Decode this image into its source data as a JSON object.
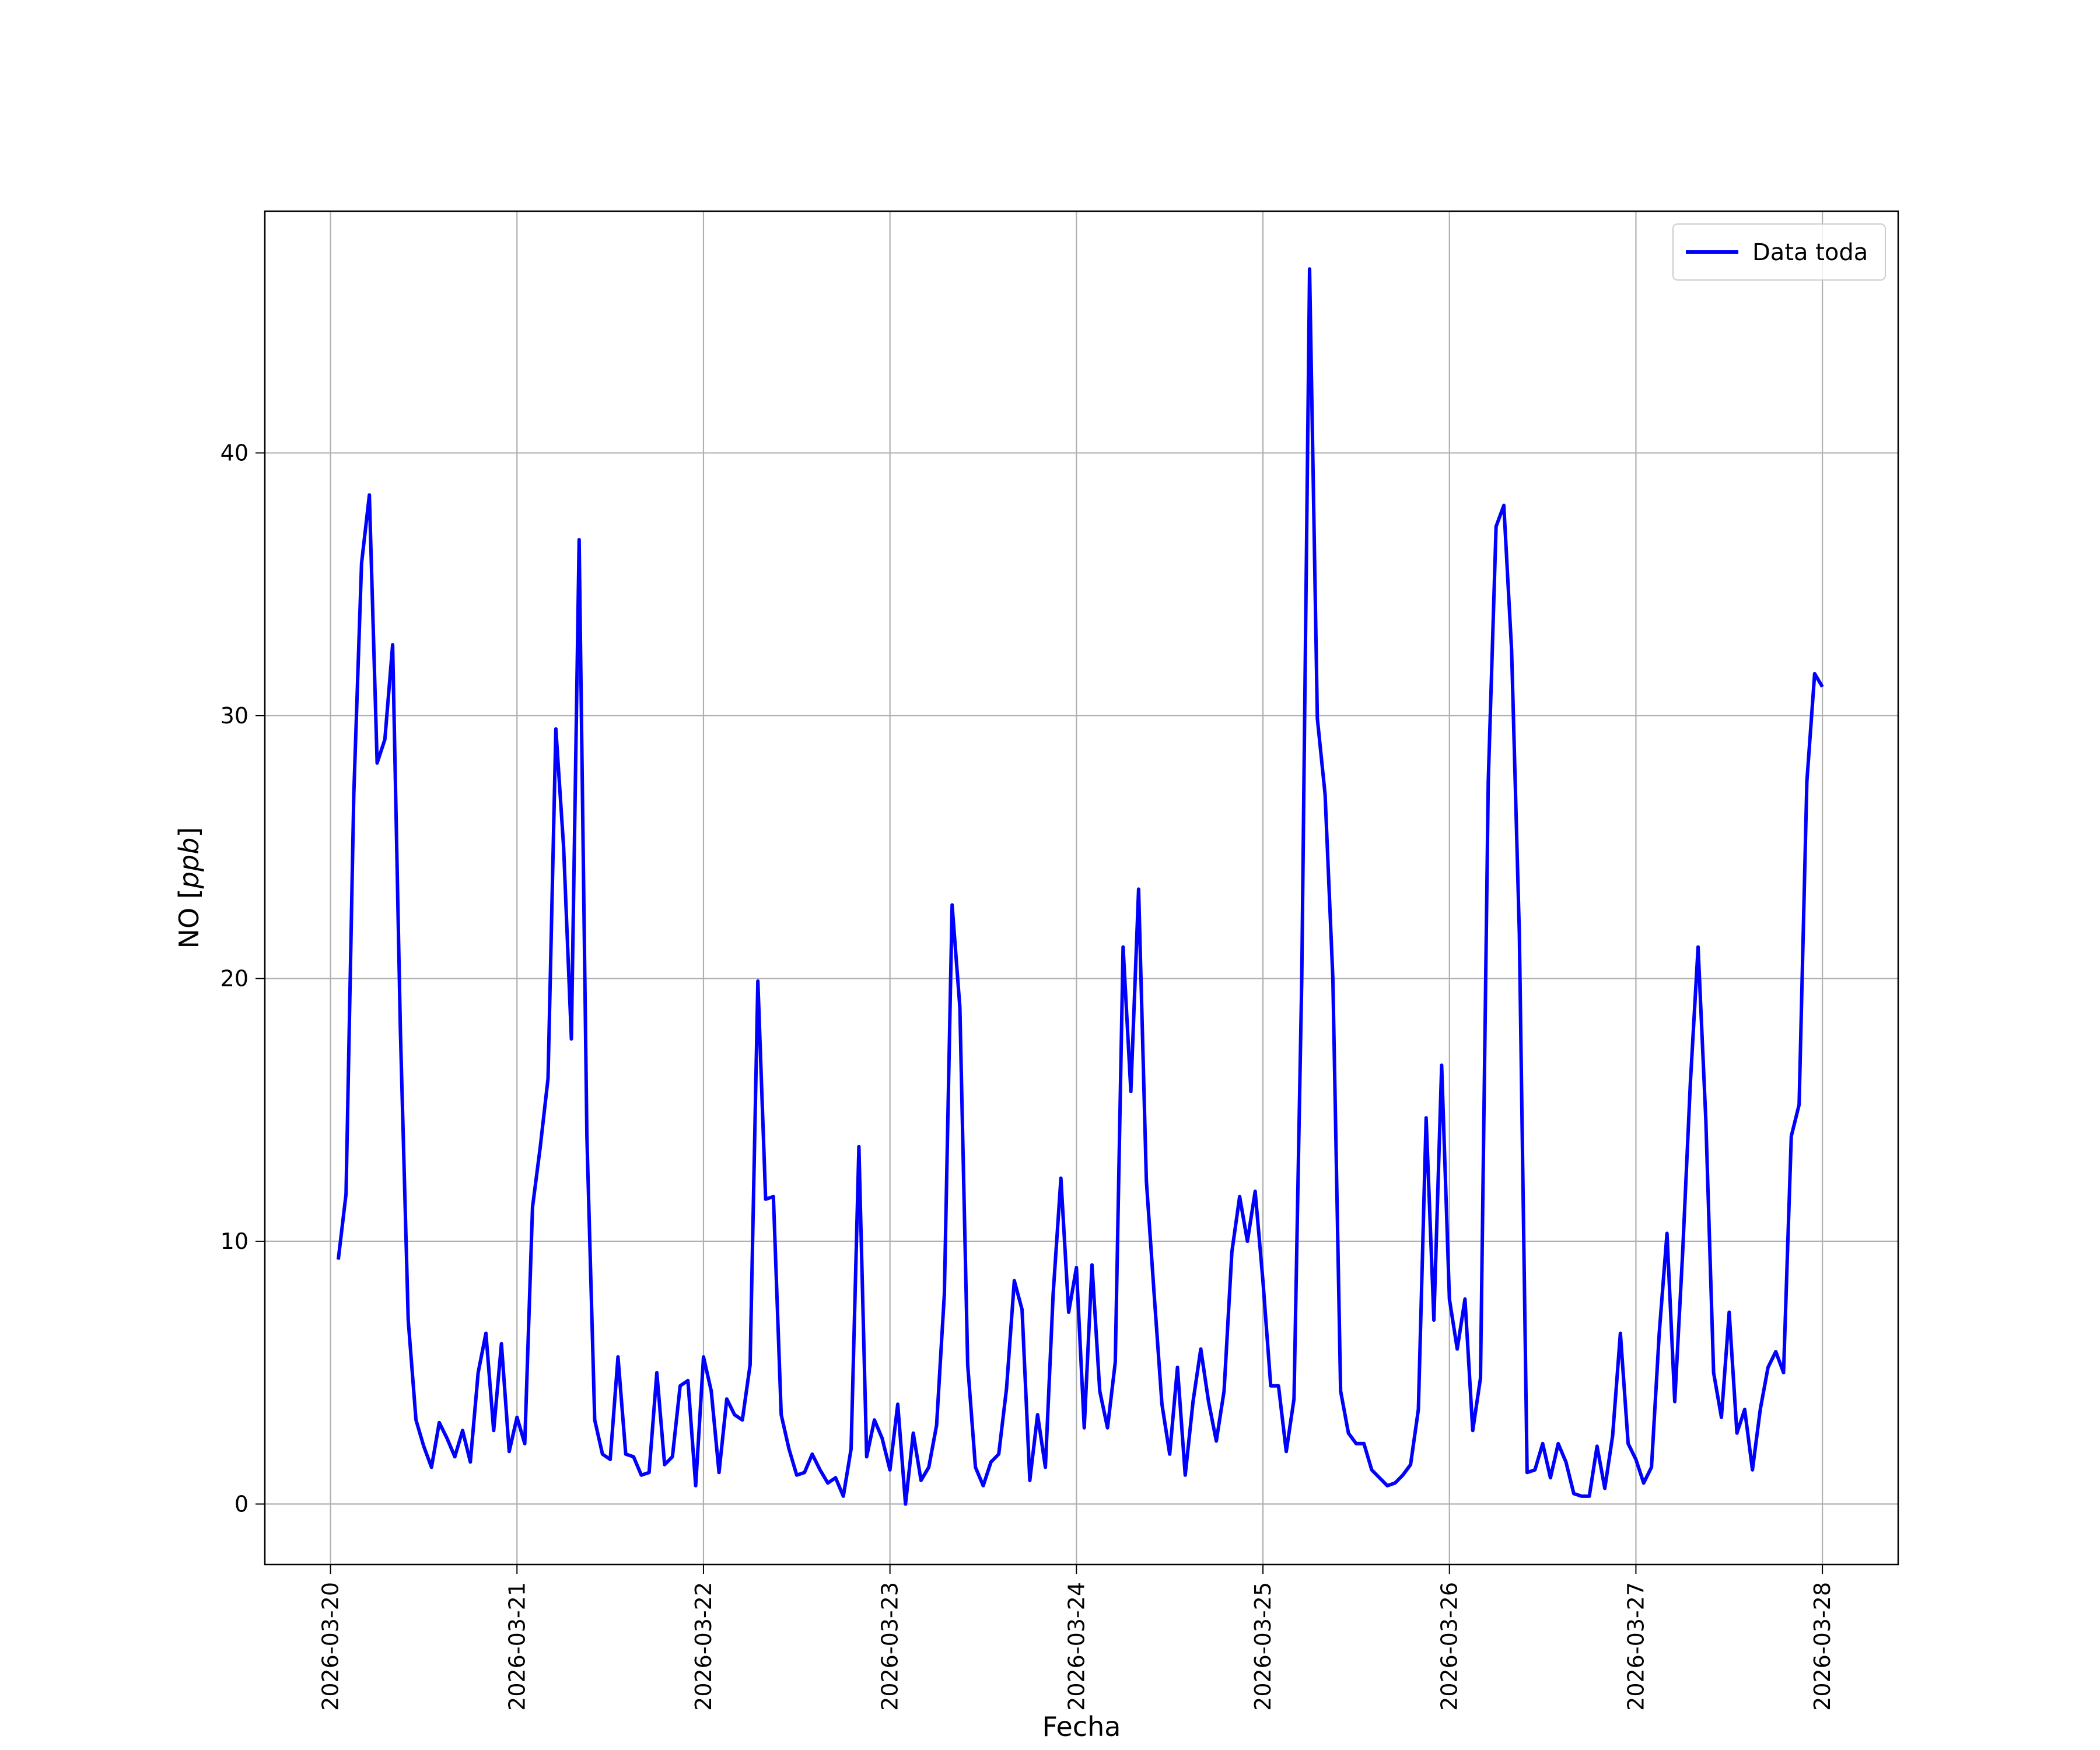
{
  "chart_data": {
    "type": "line",
    "title": "",
    "xlabel": "Fecha",
    "ylabel_prefix": "NO [",
    "ylabel_unit": "ppb",
    "ylabel_suffix": "]",
    "x_ticks": [
      "2026-03-20",
      "2026-03-21",
      "2026-03-22",
      "2026-03-23",
      "2026-03-24",
      "2026-03-25",
      "2026-03-26",
      "2026-03-27",
      "2026-03-28"
    ],
    "y_ticks": [
      0,
      10,
      20,
      30,
      40
    ],
    "xlim": [
      "2026-03-19T15:33",
      "2026-03-28T09:45"
    ],
    "ylim": [
      -2.3,
      49.2
    ],
    "grid": true,
    "legend": {
      "position": "top-right"
    },
    "series": [
      {
        "name": "Data toda",
        "color": "#0000ff",
        "x": [
          "2026-03-20T01:00",
          "2026-03-20T02:00",
          "2026-03-20T03:00",
          "2026-03-20T04:00",
          "2026-03-20T05:00",
          "2026-03-20T06:00",
          "2026-03-20T07:00",
          "2026-03-20T08:00",
          "2026-03-20T09:00",
          "2026-03-20T10:00",
          "2026-03-20T11:00",
          "2026-03-20T12:00",
          "2026-03-20T13:00",
          "2026-03-20T14:00",
          "2026-03-20T15:00",
          "2026-03-20T16:00",
          "2026-03-20T17:00",
          "2026-03-20T18:00",
          "2026-03-20T19:00",
          "2026-03-20T20:00",
          "2026-03-20T21:00",
          "2026-03-20T22:00",
          "2026-03-20T23:00",
          "2026-03-21T00:00",
          "2026-03-21T01:00",
          "2026-03-21T02:00",
          "2026-03-21T03:00",
          "2026-03-21T04:00",
          "2026-03-21T05:00",
          "2026-03-21T06:00",
          "2026-03-21T07:00",
          "2026-03-21T08:00",
          "2026-03-21T09:00",
          "2026-03-21T10:00",
          "2026-03-21T11:00",
          "2026-03-21T12:00",
          "2026-03-21T13:00",
          "2026-03-21T14:00",
          "2026-03-21T15:00",
          "2026-03-21T16:00",
          "2026-03-21T17:00",
          "2026-03-21T18:00",
          "2026-03-21T19:00",
          "2026-03-21T20:00",
          "2026-03-21T21:00",
          "2026-03-21T22:00",
          "2026-03-21T23:00",
          "2026-03-22T00:00",
          "2026-03-22T01:00",
          "2026-03-22T02:00",
          "2026-03-22T03:00",
          "2026-03-22T04:00",
          "2026-03-22T05:00",
          "2026-03-22T06:00",
          "2026-03-22T07:00",
          "2026-03-22T08:00",
          "2026-03-22T09:00",
          "2026-03-22T10:00",
          "2026-03-22T11:00",
          "2026-03-22T12:00",
          "2026-03-22T13:00",
          "2026-03-22T14:00",
          "2026-03-22T15:00",
          "2026-03-22T16:00",
          "2026-03-22T17:00",
          "2026-03-22T18:00",
          "2026-03-22T19:00",
          "2026-03-22T20:00",
          "2026-03-22T21:00",
          "2026-03-22T22:00",
          "2026-03-22T23:00",
          "2026-03-23T00:00",
          "2026-03-23T01:00",
          "2026-03-23T02:00",
          "2026-03-23T03:00",
          "2026-03-23T04:00",
          "2026-03-23T05:00",
          "2026-03-23T06:00",
          "2026-03-23T07:00",
          "2026-03-23T08:00",
          "2026-03-23T09:00",
          "2026-03-23T10:00",
          "2026-03-23T11:00",
          "2026-03-23T12:00",
          "2026-03-23T13:00",
          "2026-03-23T14:00",
          "2026-03-23T15:00",
          "2026-03-23T16:00",
          "2026-03-23T17:00",
          "2026-03-23T18:00",
          "2026-03-23T19:00",
          "2026-03-23T20:00",
          "2026-03-23T21:00",
          "2026-03-23T22:00",
          "2026-03-23T23:00",
          "2026-03-24T00:00",
          "2026-03-24T01:00",
          "2026-03-24T02:00",
          "2026-03-24T03:00",
          "2026-03-24T04:00",
          "2026-03-24T05:00",
          "2026-03-24T06:00",
          "2026-03-24T07:00",
          "2026-03-24T08:00",
          "2026-03-24T09:00",
          "2026-03-24T10:00",
          "2026-03-24T11:00",
          "2026-03-24T12:00",
          "2026-03-24T13:00",
          "2026-03-24T14:00",
          "2026-03-24T15:00",
          "2026-03-24T16:00",
          "2026-03-24T17:00",
          "2026-03-24T18:00",
          "2026-03-24T19:00",
          "2026-03-24T20:00",
          "2026-03-24T21:00",
          "2026-03-24T22:00",
          "2026-03-24T23:00",
          "2026-03-25T00:00",
          "2026-03-25T01:00",
          "2026-03-25T02:00",
          "2026-03-25T03:00",
          "2026-03-25T04:00",
          "2026-03-25T05:00",
          "2026-03-25T06:00",
          "2026-03-25T07:00",
          "2026-03-25T08:00",
          "2026-03-25T09:00",
          "2026-03-25T10:00",
          "2026-03-25T11:00",
          "2026-03-25T12:00",
          "2026-03-25T13:00",
          "2026-03-25T14:00",
          "2026-03-25T15:00",
          "2026-03-25T16:00",
          "2026-03-25T17:00",
          "2026-03-25T18:00",
          "2026-03-25T19:00",
          "2026-03-25T20:00",
          "2026-03-25T21:00",
          "2026-03-25T22:00",
          "2026-03-25T23:00",
          "2026-03-26T00:00",
          "2026-03-26T01:00",
          "2026-03-26T02:00",
          "2026-03-26T03:00",
          "2026-03-26T04:00",
          "2026-03-26T05:00",
          "2026-03-26T06:00",
          "2026-03-26T07:00",
          "2026-03-26T08:00",
          "2026-03-26T09:00",
          "2026-03-26T10:00",
          "2026-03-26T11:00",
          "2026-03-26T12:00",
          "2026-03-26T13:00",
          "2026-03-26T14:00",
          "2026-03-26T15:00",
          "2026-03-26T16:00",
          "2026-03-26T17:00",
          "2026-03-26T18:00",
          "2026-03-26T19:00",
          "2026-03-26T20:00",
          "2026-03-26T21:00",
          "2026-03-26T22:00",
          "2026-03-26T23:00",
          "2026-03-27T00:00",
          "2026-03-27T01:00",
          "2026-03-27T02:00",
          "2026-03-27T03:00",
          "2026-03-27T04:00",
          "2026-03-27T05:00",
          "2026-03-27T06:00",
          "2026-03-27T07:00",
          "2026-03-27T08:00",
          "2026-03-27T09:00",
          "2026-03-27T10:00",
          "2026-03-27T11:00",
          "2026-03-27T12:00",
          "2026-03-27T13:00",
          "2026-03-27T14:00",
          "2026-03-27T15:00",
          "2026-03-27T16:00",
          "2026-03-27T17:00",
          "2026-03-27T18:00",
          "2026-03-27T19:00",
          "2026-03-27T20:00",
          "2026-03-27T21:00",
          "2026-03-27T22:00",
          "2026-03-27T23:00",
          "2026-03-28T00:00"
        ],
        "values": [
          9.3,
          11.8,
          27.0,
          35.8,
          38.4,
          28.2,
          29.1,
          32.7,
          18.0,
          7.0,
          3.2,
          2.2,
          1.4,
          3.1,
          2.5,
          1.8,
          2.8,
          1.6,
          5.0,
          6.5,
          2.8,
          6.1,
          2.0,
          3.3,
          2.3,
          11.3,
          13.6,
          16.2,
          29.5,
          25.0,
          17.7,
          36.7,
          14.0,
          3.2,
          1.9,
          1.7,
          5.6,
          1.9,
          1.8,
          1.1,
          1.2,
          5.0,
          1.5,
          1.8,
          4.5,
          4.7,
          0.7,
          5.6,
          4.3,
          1.2,
          4.0,
          3.4,
          3.2,
          5.3,
          19.9,
          11.6,
          11.7,
          3.4,
          2.1,
          1.1,
          1.2,
          1.9,
          1.3,
          0.8,
          1.0,
          0.3,
          2.1,
          13.6,
          1.8,
          3.2,
          2.5,
          1.3,
          3.8,
          0.0,
          2.7,
          0.9,
          1.4,
          3.0,
          8.0,
          22.8,
          18.9,
          5.3,
          1.4,
          0.7,
          1.6,
          1.9,
          4.4,
          8.5,
          7.4,
          0.9,
          3.4,
          1.4,
          8.0,
          12.4,
          7.3,
          9.0,
          2.9,
          9.1,
          4.3,
          2.9,
          5.4,
          21.2,
          15.7,
          23.4,
          12.3,
          8.0,
          3.8,
          1.9,
          5.2,
          1.1,
          3.9,
          5.9,
          3.9,
          2.4,
          4.3,
          9.6,
          11.7,
          10.0,
          11.9,
          8.5,
          4.5,
          4.5,
          2.0,
          4.0,
          20.0,
          47.0,
          29.9,
          27.0,
          20.0,
          4.3,
          2.7,
          2.3,
          2.3,
          1.3,
          1.0,
          0.7,
          0.8,
          1.1,
          1.5,
          3.6,
          14.7,
          7.0,
          16.7,
          7.8,
          5.9,
          7.8,
          2.8,
          4.8,
          27.5,
          37.2,
          38.0,
          32.5,
          21.7,
          1.2,
          1.3,
          2.3,
          1.0,
          2.3,
          1.6,
          0.4,
          0.3,
          0.3,
          2.2,
          0.6,
          2.6,
          6.5,
          2.3,
          1.7,
          0.8,
          1.4,
          6.5,
          10.3,
          3.9,
          9.5,
          16.0,
          21.2,
          14.6,
          5.0,
          3.3,
          7.3,
          2.7,
          3.6,
          1.3,
          3.6,
          5.2,
          5.8,
          5.0,
          14.0,
          15.2,
          27.5,
          31.6,
          31.1
        ]
      }
    ]
  }
}
